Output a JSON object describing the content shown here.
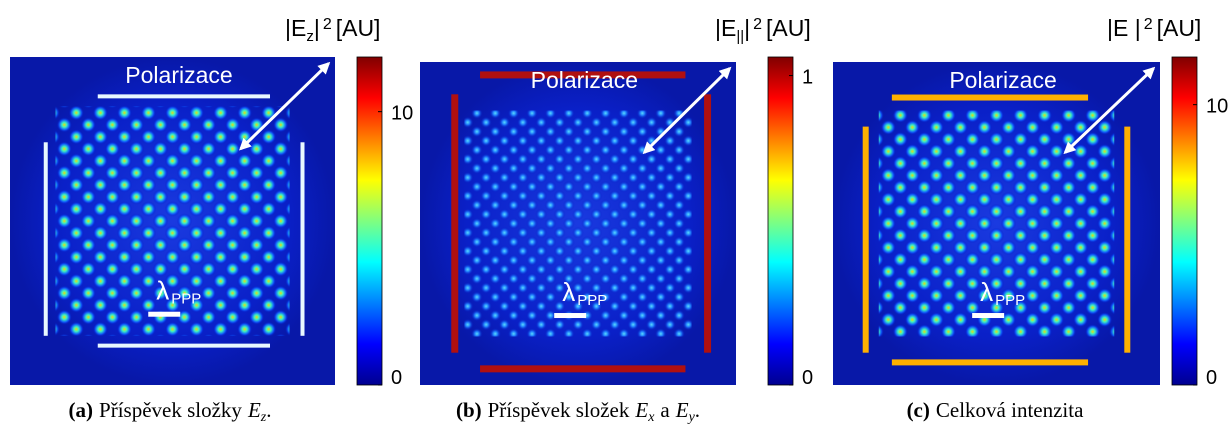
{
  "panels": [
    {
      "title": [
        {
          "text": "|E"
        },
        {
          "text": "z",
          "sub": true
        },
        {
          "text": "|"
        },
        {
          "text": "2",
          "sup": true
        },
        {
          "text": "[AU]"
        }
      ],
      "polarization": "Polarizace",
      "wavelength": {
        "symbol": "λ",
        "sub": "PPP"
      },
      "colorbar": {
        "clim": [
          0,
          12
        ],
        "ticks": [
          10,
          0
        ]
      },
      "caption": [
        {
          "text": "(a)",
          "bold": true
        },
        {
          "text": "Příspěvek složky"
        },
        {
          "text": "E",
          "italic": true
        },
        {
          "text": "z",
          "sub": true
        },
        {
          "text": "."
        }
      ]
    },
    {
      "title": [
        {
          "text": "|E"
        },
        {
          "text": "||",
          "sub": true
        },
        {
          "text": "|"
        },
        {
          "text": "2",
          "sup": true
        },
        {
          "text": "[AU]"
        }
      ],
      "polarization": "Polarizace",
      "wavelength": {
        "symbol": "λ",
        "sub": "PPP"
      },
      "colorbar": {
        "clim": [
          0,
          1.06
        ],
        "ticks": [
          1,
          0
        ]
      },
      "caption": [
        {
          "text": "(b)",
          "bold": true
        },
        {
          "text": "Příspěvek složek"
        },
        {
          "text": "E",
          "italic": true
        },
        {
          "text": "x",
          "sub": true
        },
        {
          "text": "a"
        },
        {
          "text": "E",
          "italic": true
        },
        {
          "text": "y",
          "sub": true
        },
        {
          "text": "."
        }
      ]
    },
    {
      "title": [
        {
          "text": "|E |"
        },
        {
          "text": "2",
          "sup": true
        },
        {
          "text": "[AU]"
        }
      ],
      "polarization": "Polarizace",
      "wavelength": {
        "symbol": "λ",
        "sub": "PPP"
      },
      "colorbar": {
        "clim": [
          0,
          11.7
        ],
        "ticks": [
          10,
          0
        ]
      },
      "caption": [
        {
          "text": "(c)",
          "bold": true
        },
        {
          "text": "Celková intenzita"
        }
      ]
    }
  ]
}
